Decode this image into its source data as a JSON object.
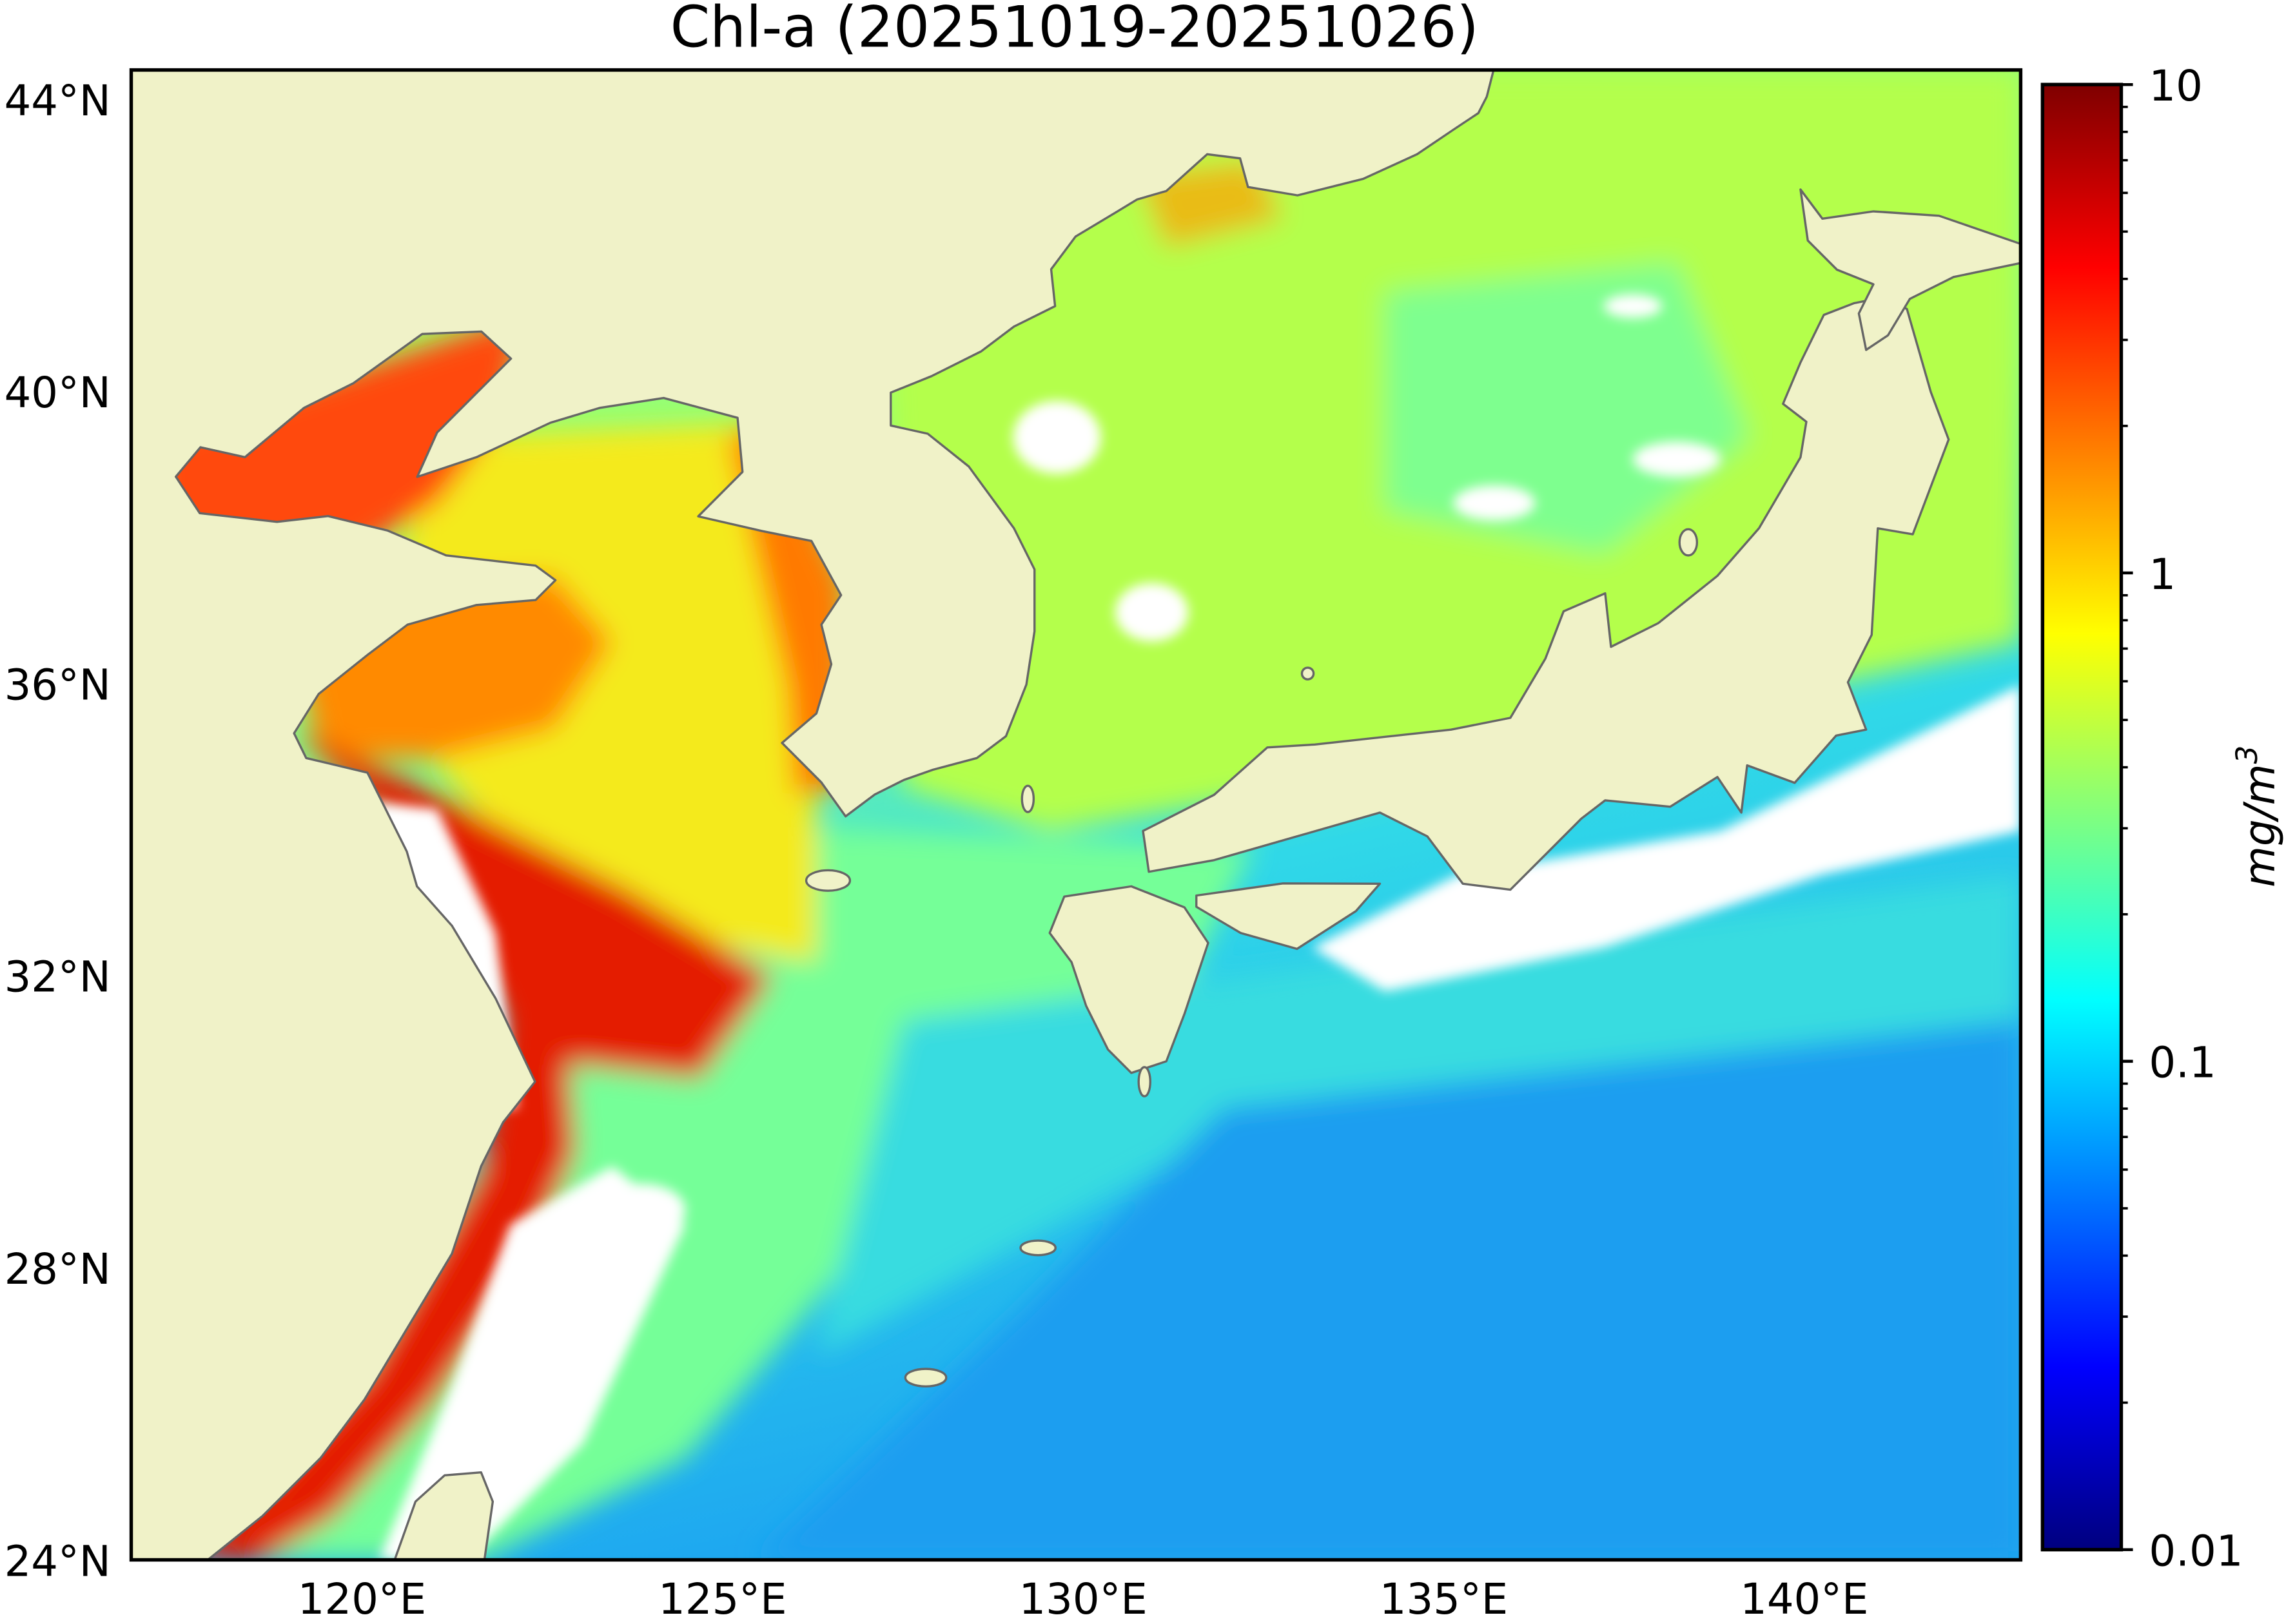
{
  "title": "Chl-a (20251019-20251026)",
  "map": {
    "projection": "plate-carree",
    "lon_range": [
      116.8,
      143.0
    ],
    "lat_range": [
      24.0,
      44.4
    ],
    "land_color": "#f0f2c8",
    "coastline_color": "#666666",
    "no_data_color": "#ffffff",
    "xticks": [
      {
        "value": 120,
        "label": "120°E"
      },
      {
        "value": 125,
        "label": "125°E"
      },
      {
        "value": 130,
        "label": "130°E"
      },
      {
        "value": 135,
        "label": "135°E"
      },
      {
        "value": 140,
        "label": "140°E"
      }
    ],
    "yticks": [
      {
        "value": 24,
        "label": "24°N"
      },
      {
        "value": 28,
        "label": "28°N"
      },
      {
        "value": 32,
        "label": "32°N"
      },
      {
        "value": 36,
        "label": "36°N"
      },
      {
        "value": 40,
        "label": "40°N"
      },
      {
        "value": 44,
        "label": "44°N"
      }
    ]
  },
  "colorbar": {
    "label": "mg/m",
    "label_sup": "3",
    "scale": "log",
    "range": [
      0.01,
      10
    ],
    "colormap": "jet",
    "colormap_stops": [
      "#00007f",
      "#0000ff",
      "#00ffff",
      "#ffff00",
      "#ff0000",
      "#7f0000"
    ],
    "ticks": [
      {
        "value": 10,
        "label": "10"
      },
      {
        "value": 1,
        "label": "1"
      },
      {
        "value": 0.1,
        "label": "0.1"
      },
      {
        "value": 0.01,
        "label": "0.01"
      }
    ]
  }
}
